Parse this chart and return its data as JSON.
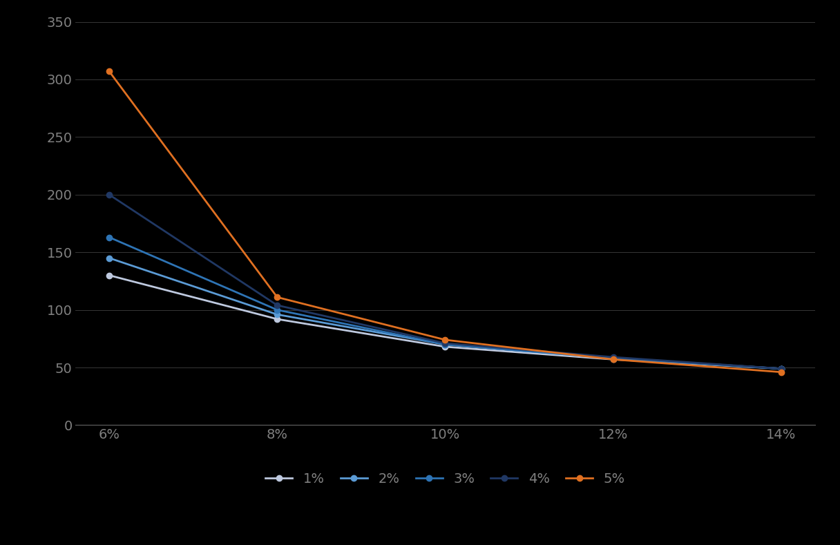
{
  "x_labels": [
    "6%",
    "8%",
    "10%",
    "12%",
    "14%"
  ],
  "x_values": [
    6,
    8,
    10,
    12,
    14
  ],
  "series": [
    {
      "label": "1%",
      "values": [
        130,
        92,
        68,
        57,
        49
      ],
      "color": "#bec9df"
    },
    {
      "label": "2%",
      "values": [
        145,
        96,
        70,
        58,
        49
      ],
      "color": "#5b9bd5"
    },
    {
      "label": "3%",
      "values": [
        163,
        100,
        70,
        58,
        49
      ],
      "color": "#2e74b5"
    },
    {
      "label": "4%",
      "values": [
        200,
        104,
        71,
        59,
        49
      ],
      "color": "#203864"
    },
    {
      "label": "5%",
      "values": [
        307,
        111,
        74,
        57,
        46
      ],
      "color": "#e07021"
    }
  ],
  "ylim": [
    0,
    350
  ],
  "yticks": [
    0,
    50,
    100,
    150,
    200,
    250,
    300,
    350
  ],
  "background_color": "#000000",
  "plot_bg": "#000000",
  "grid_color": "#ffffff",
  "grid_alpha": 0.25,
  "text_color": "#808080",
  "legend_loc": "lower center",
  "legend_ncol": 5,
  "figsize": [
    12.16,
    7.89
  ],
  "dpi": 100,
  "tick_fontsize": 14,
  "legend_fontsize": 14,
  "linewidth": 2.0,
  "markersize": 6
}
